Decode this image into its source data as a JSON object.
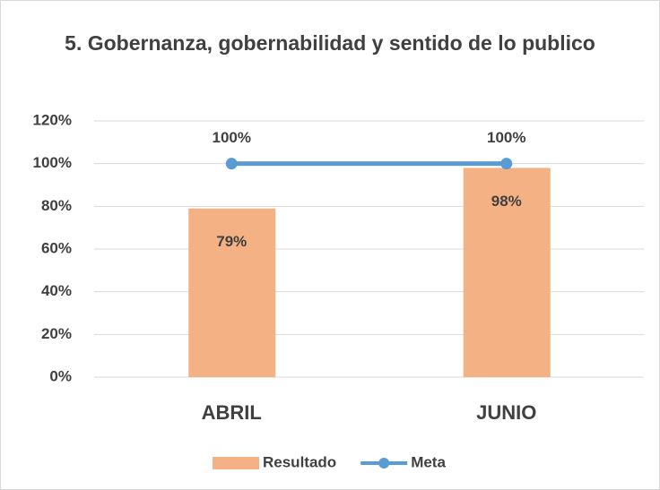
{
  "chart_data": {
    "type": "bar",
    "title": "5. Gobernanza, gobernabilidad y sentido de lo publico",
    "categories": [
      "ABRIL",
      "JUNIO"
    ],
    "series": [
      {
        "name": "Resultado",
        "type": "bar",
        "color": "#f4b183",
        "values": [
          79,
          98
        ],
        "value_labels": [
          "79%",
          "98%"
        ]
      },
      {
        "name": "Meta",
        "type": "line",
        "color": "#5b9bd5",
        "values": [
          100,
          100
        ],
        "value_labels": [
          "100%",
          "100%"
        ]
      }
    ],
    "ylim": [
      0,
      120
    ],
    "yticks": [
      {
        "value": 0,
        "label": "0%"
      },
      {
        "value": 20,
        "label": "20%"
      },
      {
        "value": 40,
        "label": "40%"
      },
      {
        "value": 60,
        "label": "60%"
      },
      {
        "value": 80,
        "label": "80%"
      },
      {
        "value": 100,
        "label": "100%"
      },
      {
        "value": 120,
        "label": "120%"
      }
    ],
    "grid": true,
    "legend": "bottom"
  }
}
